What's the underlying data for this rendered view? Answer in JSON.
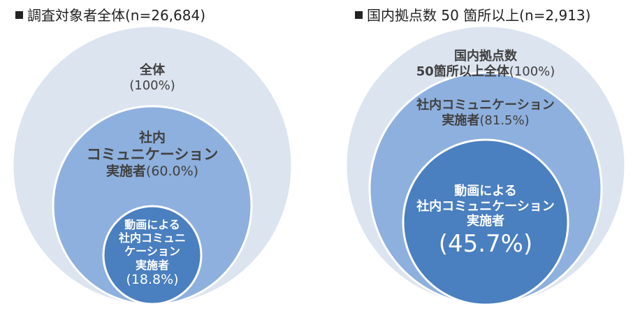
{
  "left": {
    "title": "調査対象者全体(n=26,684)",
    "outer": {
      "line1": "全体",
      "pct": "(100%)",
      "value": 100
    },
    "middle": {
      "line1": "社内",
      "line2": "コミュニケーション",
      "line3": "実施者",
      "pct": "(60.0%)",
      "value": 60.0
    },
    "inner": {
      "line1": "動画による",
      "line2": "社内コミュニ",
      "line3": "ケーション",
      "line4": "実施者",
      "pct": "(18.8%)",
      "value": 18.8
    }
  },
  "right": {
    "title": "国内拠点数 50 箇所以上(n=2,913)",
    "outer": {
      "line1": "国内拠点数",
      "line2": "50箇所以上全体",
      "pct": "(100%)",
      "value": 100
    },
    "middle": {
      "line1": "社内コミュニケーション",
      "line2": "実施者",
      "pct": "(81.5%)",
      "value": 81.5
    },
    "inner": {
      "line1": "動画による",
      "line2": "社内コミュニケーション",
      "line3": "実施者",
      "pct": "(45.7%)",
      "value": 45.7
    }
  },
  "colors": {
    "outer": "#dce4f0",
    "middle": "#8eb0de",
    "inner": "#4a7fc0"
  }
}
